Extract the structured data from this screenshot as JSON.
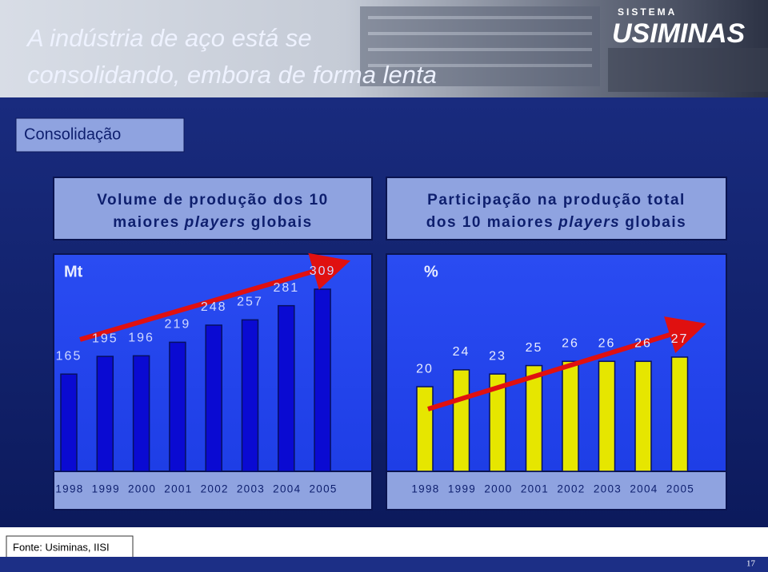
{
  "title": [
    "A indústria de aço está se",
    "consolidando, embora de forma lenta"
  ],
  "logo": {
    "top": "SISTEMA",
    "main": "USIMINAS"
  },
  "section": "Consolidação",
  "chart_data": [
    {
      "type": "bar",
      "title": [
        [
          "Volume de produção dos 10"
        ],
        [
          "maiores",
          "players",
          "globais"
        ]
      ],
      "title_italic": [
        [
          false
        ],
        [
          false,
          true,
          false
        ]
      ],
      "unit": "Mt",
      "categories": [
        "1998",
        "1999",
        "2000",
        "2001",
        "2002",
        "2003",
        "2004",
        "2005"
      ],
      "values": [
        165,
        195,
        196,
        219,
        248,
        257,
        281,
        309
      ],
      "color": "#0a0ad2"
    },
    {
      "type": "bar",
      "title": [
        [
          "Participação na produção total"
        ],
        [
          "dos 10 maiores",
          "players",
          "globais"
        ]
      ],
      "title_italic": [
        [
          false
        ],
        [
          false,
          true,
          false
        ]
      ],
      "unit": "%",
      "categories": [
        "1998",
        "1999",
        "2000",
        "2001",
        "2002",
        "2003",
        "2004",
        "2005"
      ],
      "values": [
        20,
        24,
        23,
        25,
        26,
        26,
        26,
        27
      ],
      "color": "#e6e600"
    }
  ],
  "source": "Fonte: Usiminas, IISI",
  "page_number": "17"
}
